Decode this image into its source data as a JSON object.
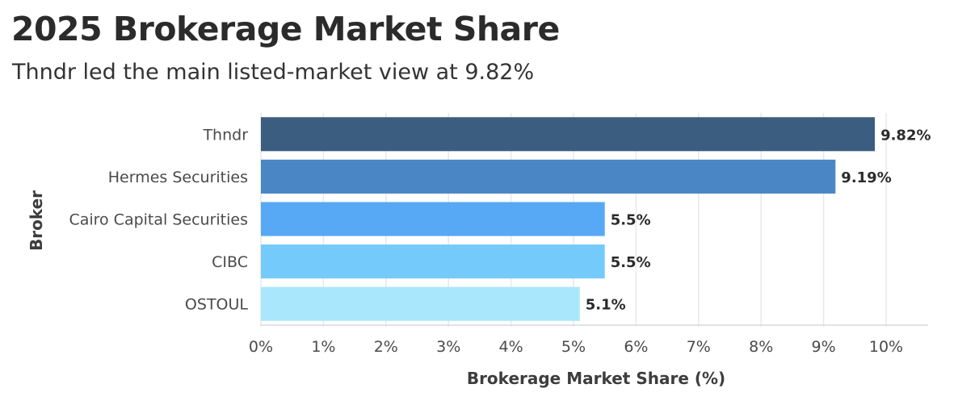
{
  "title": "2025 Brokerage Market Share",
  "subtitle": "Thndr led the main listed-market view at 9.82%",
  "chart_data": {
    "type": "bar",
    "orientation": "horizontal",
    "title": "2025 Brokerage Market Share",
    "subtitle": "Thndr led the main listed-market view at 9.82%",
    "xlabel": "Brokerage Market Share (%)",
    "ylabel": "Broker",
    "xlim": [
      0,
      10
    ],
    "xticks": [
      "0%",
      "1%",
      "2%",
      "3%",
      "4%",
      "5%",
      "6%",
      "7%",
      "8%",
      "9%",
      "10%"
    ],
    "grid": true,
    "legend": "none",
    "categories": [
      "Thndr",
      "Hermes Securities",
      "Cairo Capital Securities",
      "CIBC",
      "OSTOUL"
    ],
    "values": [
      9.82,
      9.19,
      5.5,
      5.5,
      5.1
    ],
    "data_labels": [
      "9.82%",
      "9.19%",
      "5.5%",
      "5.5%",
      "5.1%"
    ],
    "colors": [
      "#3b5d80",
      "#4a86c6",
      "#57a8f5",
      "#74cafa",
      "#a9e8fc"
    ]
  }
}
